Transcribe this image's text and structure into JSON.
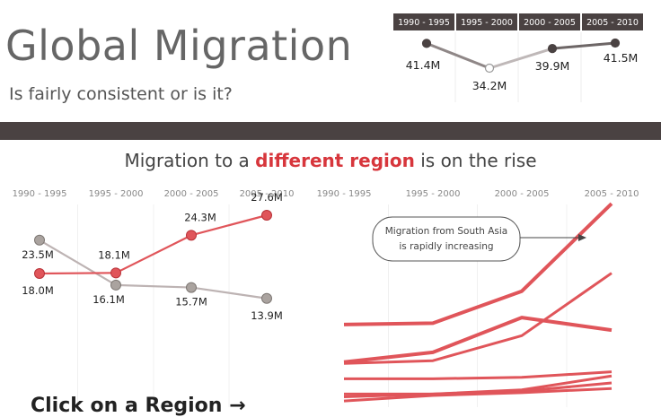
{
  "header": {
    "title": "Global Migration",
    "subtitle": "Is fairly consistent or is it?"
  },
  "section": {
    "headline_pre": "Migration to a ",
    "headline_highlight": "different region",
    "headline_post": " is on the rise"
  },
  "cta": {
    "label": "Click on a Region →"
  },
  "colors": {
    "dark": "#4a4242",
    "red": "#e0555a",
    "grey_line": "#bdb3b3",
    "grey_dot": "#aaa39f",
    "axis_text": "#888888"
  },
  "chart_data": [
    {
      "type": "line",
      "categories": [
        "1990 - 1995",
        "1995 - 2000",
        "2000 - 2005",
        "2005 - 2010"
      ],
      "series": [
        {
          "values": [
            41.4,
            34.2,
            39.9,
            41.5
          ],
          "labels": [
            "41.4M",
            "34.2M",
            "39.9M",
            "41.5M"
          ]
        }
      ]
    },
    {
      "type": "line",
      "categories": [
        "1990 - 1995",
        "1995 - 2000",
        "2000 - 2005",
        "2005 - 2010"
      ],
      "series": [
        {
          "values": [
            18.0,
            18.1,
            24.3,
            27.6
          ],
          "labels": [
            "18.0M",
            "18.1M",
            "24.3M",
            "27.6M"
          ],
          "color": "#e0555a"
        },
        {
          "values": [
            23.5,
            16.1,
            15.7,
            13.9
          ],
          "labels": [
            "23.5M",
            "16.1M",
            "15.7M",
            "13.9M"
          ],
          "color": "#aaa39f"
        }
      ]
    },
    {
      "type": "line",
      "categories": [
        "1990 - 1995",
        "1995 - 2000",
        "2000 - 2005",
        "2005 - 2010"
      ],
      "annotation": "Migration from South Asia is rapidly increasing",
      "series": [
        {
          "values": [
            2.2,
            2.3,
            4.6,
            10.9
          ]
        },
        {
          "values": [
            -0.5,
            0.2,
            2.7,
            1.8
          ]
        },
        {
          "values": [
            -0.6,
            -0.4,
            1.4,
            5.9
          ]
        },
        {
          "values": [
            -1.7,
            -1.7,
            -1.6,
            -1.2
          ]
        },
        {
          "values": [
            -2.8,
            -2.8,
            -2.5,
            -1.5
          ]
        },
        {
          "values": [
            -3.0,
            -2.8,
            -2.6,
            -2.0
          ]
        },
        {
          "values": [
            -3.3,
            -2.9,
            -2.7,
            -2.4
          ]
        }
      ]
    }
  ]
}
